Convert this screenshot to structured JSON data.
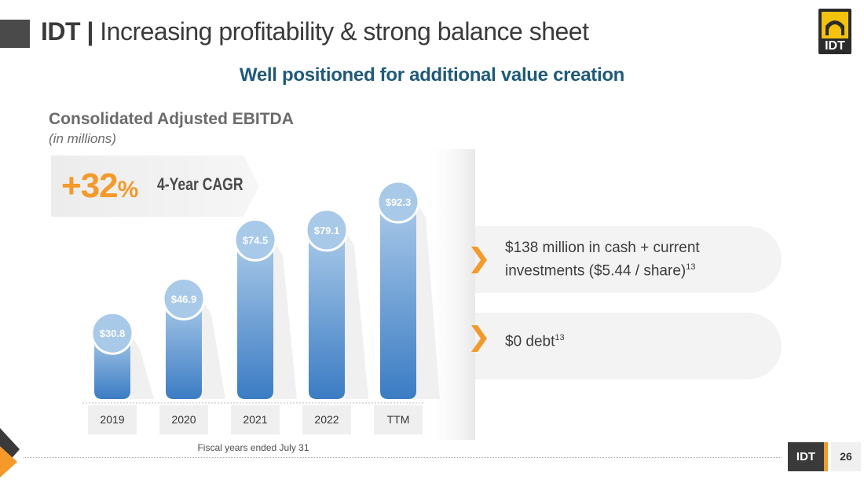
{
  "header": {
    "brand": "IDT",
    "separator": "|",
    "title": "Increasing profitability & strong balance sheet",
    "subtitle": "Well positioned for additional  value creation"
  },
  "logo": {
    "text": "IDT"
  },
  "cagr": {
    "value": "+32",
    "unit": "%",
    "label": "4-Year CAGR"
  },
  "chart_data": {
    "type": "bar",
    "title": "Consolidated Adjusted EBITDA",
    "subtitle": "(in millions)",
    "categories": [
      "2019",
      "2020",
      "2021",
      "2022",
      "TTM"
    ],
    "values": [
      30.8,
      46.9,
      74.5,
      79.1,
      92.3
    ],
    "value_labels": [
      "$30.8",
      "$46.9",
      "$74.5",
      "$79.1",
      "$92.3"
    ],
    "xlabel": "",
    "ylabel": "",
    "ylim": [
      0,
      100
    ],
    "grid": false,
    "note": "Fiscal years ended July 31"
  },
  "highlights": [
    {
      "line1": "$138 million in cash + current",
      "line2": "investments ($5.44 / share)",
      "sup": "13"
    },
    {
      "line1": "$0 debt",
      "sup": "13"
    }
  ],
  "footer": {
    "label": "IDT",
    "page": "26"
  },
  "colors": {
    "accent": "#f39a2b",
    "subtitle": "#1f5a78",
    "bar_top": "#a9c9e8",
    "bar_bottom": "#3b7cc4",
    "dark": "#3a3a3a"
  }
}
